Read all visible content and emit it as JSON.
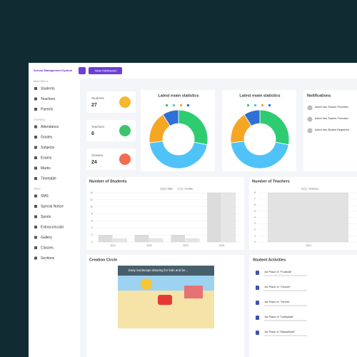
{
  "brand": "School Management System",
  "button": "New Admission",
  "sidebar": [
    {
      "section": "Main Menu",
      "items": [
        "Students",
        "Teachers",
        "Parents"
      ]
    },
    {
      "section": "Learning",
      "items": [
        "Attendance",
        "Grades",
        "Subjects",
        "Exams",
        "Marks",
        "Timetable"
      ]
    },
    {
      "section": "Other",
      "items": [
        "SMS",
        "Special Notice",
        "Sports",
        "Extracurricular",
        "Gallery",
        "Classes",
        "Sections"
      ]
    }
  ],
  "stat_cards": [
    {
      "label": "Students",
      "value": "27"
    },
    {
      "label": "Teachers",
      "value": "6"
    },
    {
      "label": "Classes",
      "value": "24"
    }
  ],
  "exam_charts": [
    {
      "type": "donut",
      "title": "Latest exam statistics",
      "values": [
        28,
        45,
        18,
        9
      ],
      "colors": [
        "#2ecc71",
        "#4fc3f7",
        "#f5a623",
        "#2f6fd6"
      ]
    },
    {
      "type": "donut",
      "title": "Latest exam statistics",
      "values": [
        28,
        45,
        18,
        9
      ],
      "colors": [
        "#2ecc71",
        "#4fc3f7",
        "#f5a623",
        "#2f6fd6"
      ]
    }
  ],
  "notifications": {
    "title": "Notifications",
    "items": [
      "Admin Has Teacher Promoted",
      "Admin Has Teacher Promoted",
      "Admin Has Student Registered"
    ]
  },
  "student_chart": {
    "type": "bar",
    "title": "Number of Students",
    "categories": [
      "2021",
      "2022",
      "2023",
      "2024"
    ],
    "series": [
      {
        "name": "Male",
        "color": "#dcdcdc",
        "values": [
          2,
          2,
          2,
          14
        ]
      },
      {
        "name": "Female",
        "color": "#e6e6e6",
        "values": [
          1,
          1,
          1,
          14
        ]
      }
    ],
    "ylim": [
      0,
      14
    ],
    "yticks": [
      0,
      2,
      4,
      6,
      8,
      10,
      12,
      14
    ]
  },
  "teacher_chart": {
    "type": "bar",
    "title": "Number of Teachers",
    "categories": [
      "2024"
    ],
    "series": [
      {
        "name": "Teachers",
        "color": "#e2e2e2",
        "values": [
          8
        ]
      }
    ],
    "ylim": [
      0,
      8
    ],
    "yticks": [
      0,
      1,
      2,
      3,
      4,
      5,
      6,
      7,
      8
    ]
  },
  "creation": {
    "title": "Creation Circle",
    "video_title": "Easy landscape drawing for kids and be..."
  },
  "activities": {
    "title": "Student Activities",
    "items": [
      "1st Place in \"Football\"",
      "1st Place in \"Cricket\"",
      "1st Place in \"Tennis\"",
      "1st Place in \"Volleyball\"",
      "1st Place in \"Basketball\""
    ]
  }
}
